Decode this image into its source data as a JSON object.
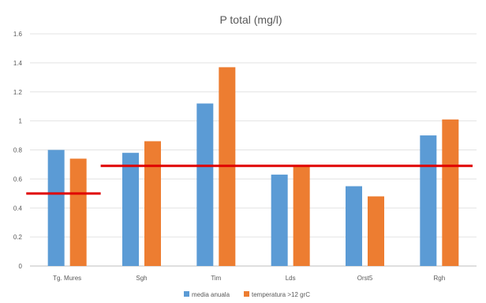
{
  "chart_data": {
    "type": "bar",
    "title": "P total (mg/l)",
    "categories": [
      "Tg. Mures",
      "Sgh",
      "Tim",
      "Lds",
      "Orst5",
      "Rgh"
    ],
    "series": [
      {
        "name": "media anuala",
        "color": "#5b9bd5",
        "values": [
          0.8,
          0.78,
          1.12,
          0.63,
          0.55,
          0.9
        ]
      },
      {
        "name": "temperatura >12 grC",
        "color": "#ed7d31",
        "values": [
          0.74,
          0.86,
          1.37,
          0.69,
          0.48,
          1.01
        ]
      }
    ],
    "ylim": [
      0,
      1.6
    ],
    "yticks": [
      0,
      0.2,
      0.4,
      0.6,
      0.8,
      1,
      1.2,
      1.4,
      1.6
    ],
    "grid": true,
    "legend_position": "bottom",
    "reference_lines": [
      {
        "value": 0.5,
        "from_category": 0,
        "to_category": 0,
        "color": "#e00000"
      },
      {
        "value": 0.69,
        "from_category": 1,
        "to_category": 5,
        "color": "#e00000"
      }
    ]
  }
}
